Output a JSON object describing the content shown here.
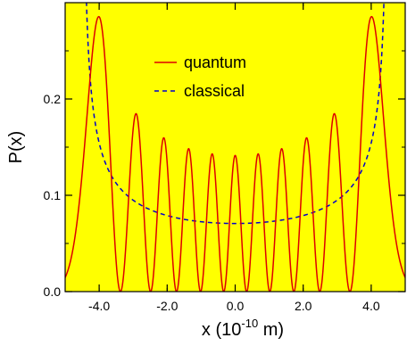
{
  "chart_data": {
    "type": "line",
    "xlabel": {
      "base": "x (10",
      "exponent": "-10",
      "suffix": " m)"
    },
    "ylabel": "P(x)",
    "xlim": [
      -5.0,
      5.0
    ],
    "ylim": [
      0.0,
      0.3
    ],
    "x_ticks": [
      {
        "value": -4.0,
        "label": "-4.0"
      },
      {
        "value": -2.0,
        "label": "-2.0"
      },
      {
        "value": 0.0,
        "label": "0.0"
      },
      {
        "value": 2.0,
        "label": "2.0"
      },
      {
        "value": 4.0,
        "label": "4.0"
      }
    ],
    "y_ticks": [
      {
        "value": 0.0,
        "label": "0.0"
      },
      {
        "value": 0.1,
        "label": "0.1"
      },
      {
        "value": 0.2,
        "label": "0.2"
      }
    ],
    "grid": false,
    "legend_position": "top-center",
    "plot_background": "#ffff00",
    "series": [
      {
        "name": "quantum",
        "color": "#dd0000",
        "style": "solid",
        "quantum_number": 10,
        "turning_point": 4.5,
        "peaks": [
          {
            "x": -4.15,
            "y": 0.278
          },
          {
            "x": -3.0,
            "y": 0.181
          },
          {
            "x": -2.13,
            "y": 0.156
          },
          {
            "x": -1.37,
            "y": 0.146
          },
          {
            "x": -0.67,
            "y": 0.14
          },
          {
            "x": 0.0,
            "y": 0.138
          },
          {
            "x": 0.67,
            "y": 0.14
          },
          {
            "x": 1.37,
            "y": 0.146
          },
          {
            "x": 2.13,
            "y": 0.156
          },
          {
            "x": 3.0,
            "y": 0.181
          },
          {
            "x": 4.15,
            "y": 0.278
          }
        ]
      },
      {
        "name": "classical",
        "color": "#0000cc",
        "style": "dashed",
        "amplitude": 4.5,
        "points": [
          {
            "x": -4.4,
            "y": 0.337
          },
          {
            "x": -4.0,
            "y": 0.154
          },
          {
            "x": -3.0,
            "y": 0.094
          },
          {
            "x": -2.0,
            "y": 0.078
          },
          {
            "x": -1.0,
            "y": 0.072
          },
          {
            "x": 0.0,
            "y": 0.0707
          },
          {
            "x": 1.0,
            "y": 0.072
          },
          {
            "x": 2.0,
            "y": 0.078
          },
          {
            "x": 3.0,
            "y": 0.094
          },
          {
            "x": 4.0,
            "y": 0.154
          },
          {
            "x": 4.4,
            "y": 0.337
          }
        ]
      }
    ]
  }
}
